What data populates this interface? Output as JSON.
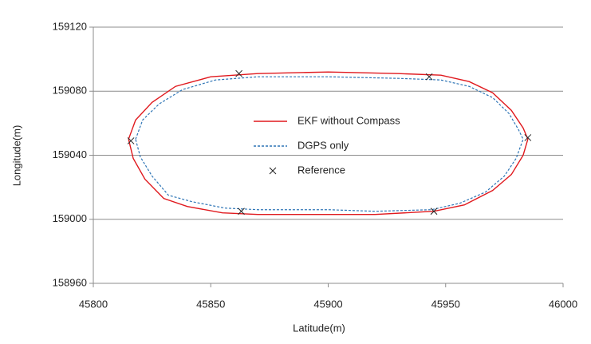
{
  "chart_data": {
    "type": "line",
    "xlabel": "Latitude(m)",
    "ylabel": "Longitude(m)",
    "xlim": [
      45800,
      46000
    ],
    "xticks": [
      45800,
      45850,
      45900,
      45950,
      46000
    ],
    "ylim": [
      158960,
      159120
    ],
    "yticks": [
      158960,
      159000,
      159040,
      159080,
      159120
    ],
    "grid": true,
    "legend": "center",
    "series": [
      {
        "name": "EKF without Compass",
        "color": "#e0191e",
        "style": "solid",
        "x": [
          45815,
          45818,
          45825,
          45835,
          45850,
          45870,
          45900,
          45930,
          45948,
          45960,
          45970,
          45978,
          45983,
          45985,
          45983,
          45978,
          45970,
          45958,
          45945,
          45920,
          45900,
          45870,
          45855,
          45840,
          45830,
          45822,
          45817,
          45815
        ],
        "y": [
          159050,
          159062,
          159073,
          159083,
          159089,
          159091,
          159092,
          159091,
          159090,
          159086,
          159079,
          159068,
          159057,
          159050,
          159040,
          159028,
          159018,
          159009,
          159005,
          159003,
          159003,
          159003,
          159004,
          159008,
          159013,
          159025,
          159038,
          159050
        ]
      },
      {
        "name": "DGPS only",
        "color": "#2e75b6",
        "style": "dashed",
        "x": [
          45818,
          45821,
          45828,
          45838,
          45852,
          45870,
          45900,
          45930,
          45948,
          45960,
          45970,
          45977,
          45981,
          45983,
          45980,
          45975,
          45967,
          45956,
          45944,
          45920,
          45900,
          45870,
          45856,
          45842,
          45832,
          45825,
          45820,
          45818
        ],
        "y": [
          159050,
          159062,
          159072,
          159081,
          159087,
          159089,
          159089,
          159088,
          159087,
          159083,
          159076,
          159066,
          159056,
          159050,
          159038,
          159027,
          159017,
          159010,
          159006,
          159005,
          159006,
          159006,
          159007,
          159011,
          159015,
          159027,
          159039,
          159050
        ]
      },
      {
        "name": "Reference",
        "color": "#222222",
        "style": "none",
        "marker": "x",
        "x": [
          45862,
          45943,
          45816,
          45985,
          45863,
          45945
        ],
        "y": [
          159091,
          159089,
          159049,
          159051,
          159005,
          159005
        ]
      }
    ]
  }
}
